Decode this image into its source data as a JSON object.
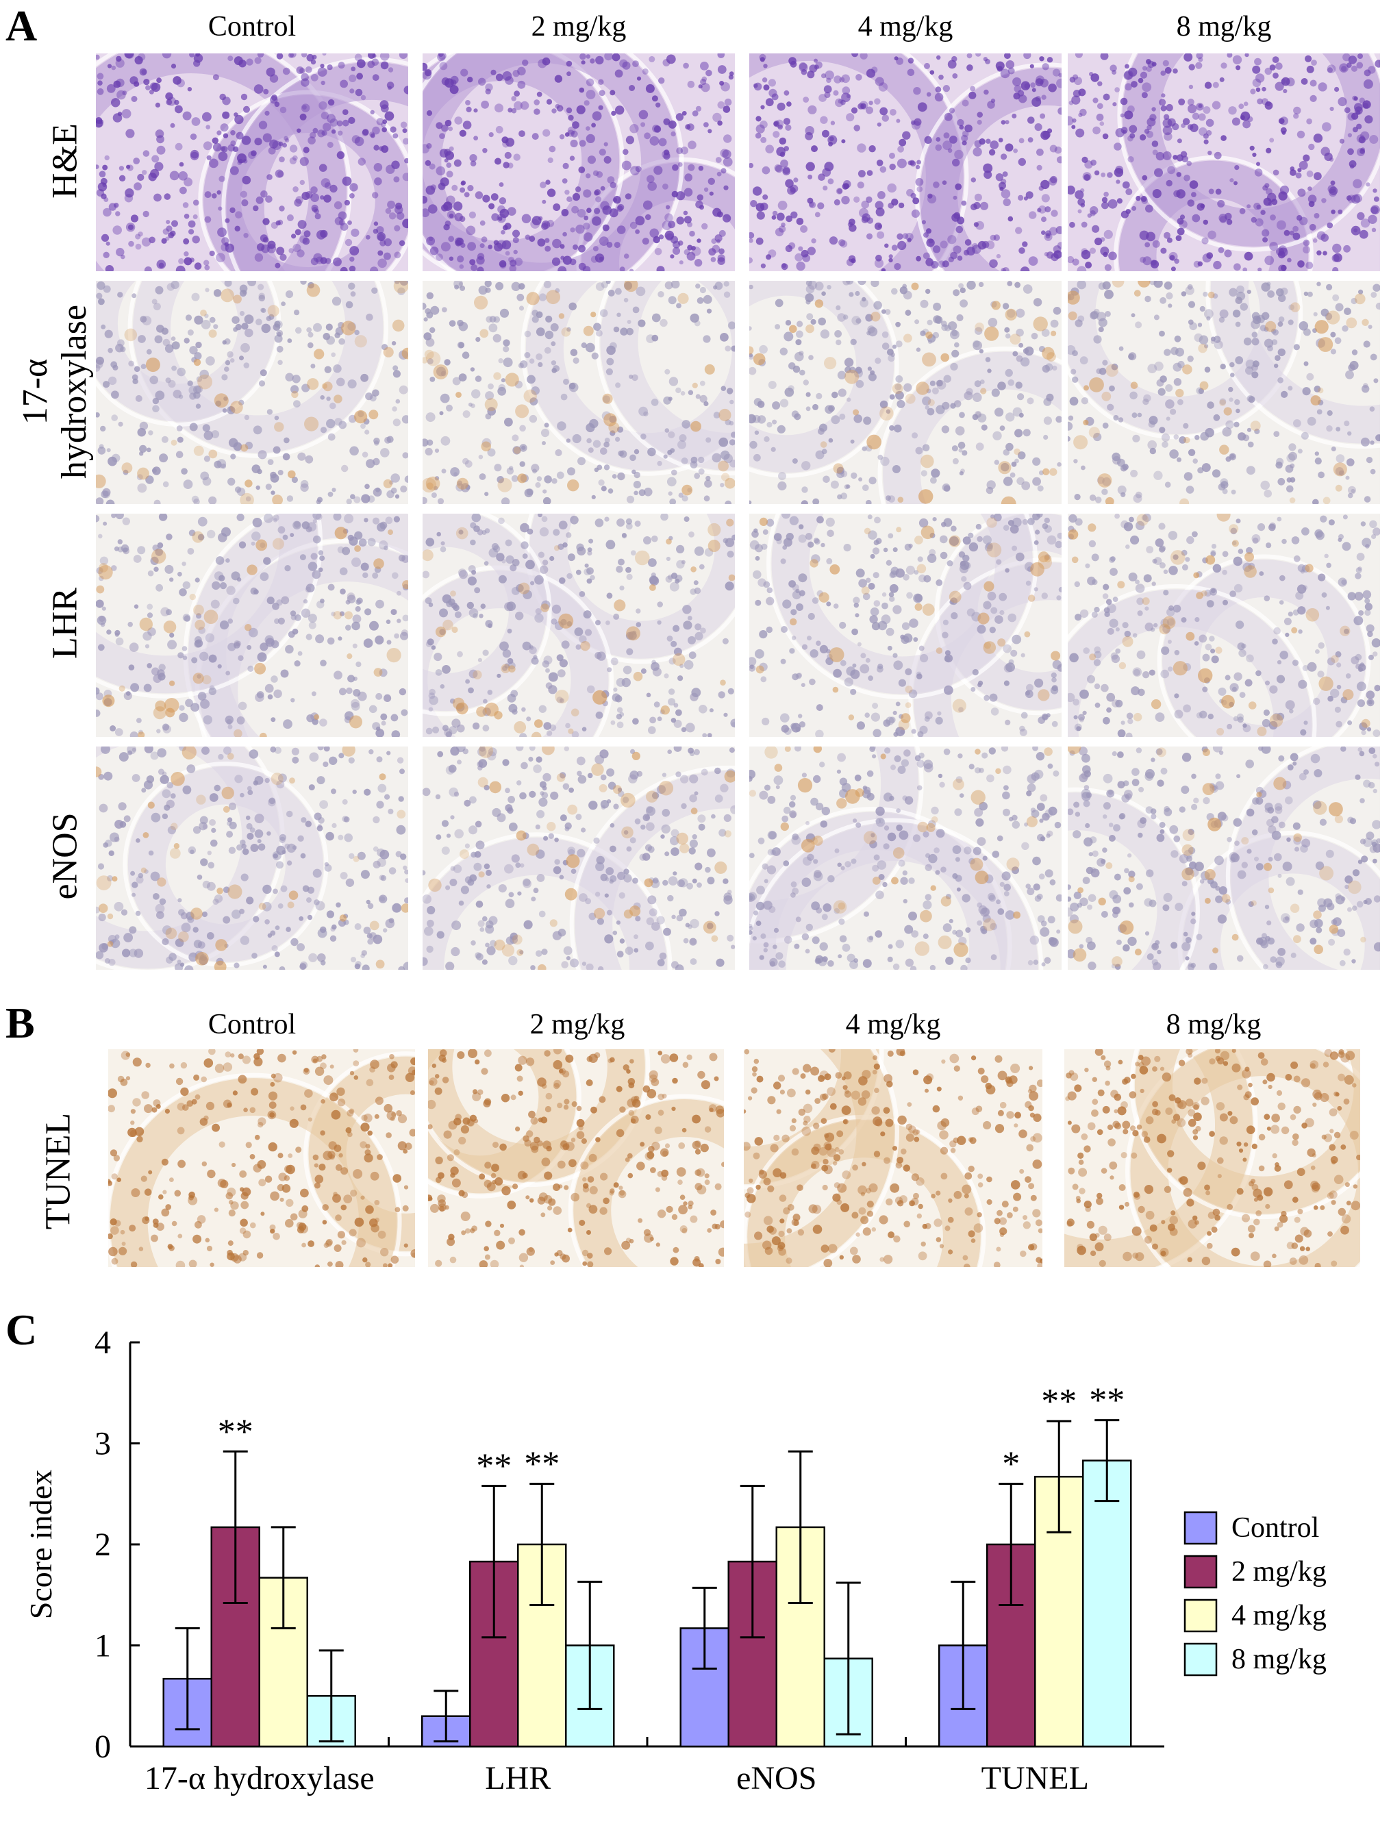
{
  "figure": {
    "panel_a": {
      "letter": "A",
      "columns": [
        "Control",
        "2 mg/kg",
        "4 mg/kg",
        "8 mg/kg"
      ],
      "rows": [
        {
          "label_lines": [
            "H&E"
          ],
          "stain": "he"
        },
        {
          "label_lines": [
            "17-α",
            "hydroxylase"
          ],
          "stain": "ihc"
        },
        {
          "label_lines": [
            "LHR"
          ],
          "stain": "ihc"
        },
        {
          "label_lines": [
            "eNOS"
          ],
          "stain": "ihc"
        }
      ]
    },
    "panel_b": {
      "letter": "B",
      "columns": [
        "Control",
        "2 mg/kg",
        "4 mg/kg",
        "8 mg/kg"
      ],
      "row_label": "TUNEL"
    },
    "panel_c": {
      "letter": "C"
    }
  },
  "colors": {
    "he_bg": "#e6d8ec",
    "he_nuclei": "#6a3fb0",
    "he_tissue": "#b79ad6",
    "ihc_bg": "#f3f1ee",
    "ihc_nuclei": "#9a94b8",
    "ihc_brown": "#d49a5a",
    "tunel_brown": "#b8753a"
  },
  "chart_data": {
    "type": "bar",
    "categories": [
      "17-α hydroxylase",
      "LHR",
      "eNOS",
      "TUNEL"
    ],
    "series": [
      {
        "name": "Control",
        "color": "#9999ff",
        "values": [
          0.67,
          0.3,
          1.17,
          1.0
        ],
        "errors": [
          0.5,
          0.25,
          0.4,
          0.63
        ]
      },
      {
        "name": "2 mg/kg",
        "color": "#993366",
        "values": [
          2.17,
          1.83,
          1.83,
          2.0
        ],
        "errors": [
          0.75,
          0.75,
          0.75,
          0.6
        ]
      },
      {
        "name": "4 mg/kg",
        "color": "#ffffcc",
        "values": [
          1.67,
          2.0,
          2.17,
          2.67
        ],
        "errors": [
          0.5,
          0.6,
          0.75,
          0.55
        ]
      },
      {
        "name": "8 mg/kg",
        "color": "#ccffff",
        "values": [
          0.5,
          1.0,
          0.87,
          2.83
        ],
        "errors": [
          0.45,
          0.63,
          0.75,
          0.4
        ]
      }
    ],
    "significance": [
      [
        "",
        "",
        "",
        ""
      ],
      [
        "**",
        "**",
        "",
        "*"
      ],
      [
        "",
        "**",
        "",
        "**"
      ],
      [
        "",
        "",
        "",
        "**"
      ]
    ],
    "ylabel": "Score index",
    "ylim": [
      0,
      4
    ],
    "yticks": [
      "0",
      "1",
      "2",
      "3",
      "4"
    ],
    "legend_position": "right",
    "grid": false
  }
}
